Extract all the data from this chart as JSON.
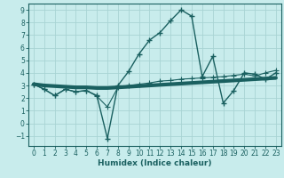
{
  "xlabel": "Humidex (Indice chaleur)",
  "bg_color": "#c8ecec",
  "grid_color": "#a8d4d4",
  "line_color": "#1a6060",
  "xlim": [
    -0.5,
    23.5
  ],
  "ylim": [
    -1.8,
    9.5
  ],
  "yticks": [
    -1,
    0,
    1,
    2,
    3,
    4,
    5,
    6,
    7,
    8,
    9
  ],
  "xticks": [
    0,
    1,
    2,
    3,
    4,
    5,
    6,
    7,
    8,
    9,
    10,
    11,
    12,
    13,
    14,
    15,
    16,
    17,
    18,
    19,
    20,
    21,
    22,
    23
  ],
  "line_thick_x": [
    0,
    1,
    2,
    3,
    4,
    5,
    6,
    7,
    8,
    9,
    10,
    11,
    12,
    13,
    14,
    15,
    16,
    17,
    18,
    19,
    20,
    21,
    22,
    23
  ],
  "line_thick_y": [
    3.1,
    3.0,
    2.95,
    2.9,
    2.85,
    2.85,
    2.8,
    2.8,
    2.85,
    2.9,
    2.95,
    3.0,
    3.05,
    3.1,
    3.15,
    3.2,
    3.25,
    3.3,
    3.35,
    3.4,
    3.45,
    3.5,
    3.55,
    3.6
  ],
  "line_main_x": [
    0,
    1,
    2,
    3,
    4,
    5,
    6,
    7,
    8,
    9,
    10,
    11,
    12,
    13,
    14,
    15,
    16,
    17,
    18,
    19,
    20,
    21,
    22,
    23
  ],
  "line_main_y": [
    3.1,
    2.7,
    2.2,
    2.7,
    2.5,
    2.6,
    2.2,
    -1.2,
    3.0,
    4.1,
    5.5,
    6.6,
    7.2,
    8.15,
    9.0,
    8.5,
    3.7,
    5.3,
    1.6,
    2.6,
    4.0,
    3.9,
    3.5,
    4.0
  ],
  "line_sec_x": [
    0,
    1,
    2,
    3,
    4,
    5,
    6,
    7,
    8,
    9,
    10,
    11,
    12,
    13,
    14,
    15,
    16,
    17,
    18,
    19,
    20,
    21,
    22,
    23
  ],
  "line_sec_y": [
    3.1,
    2.7,
    2.2,
    2.7,
    2.5,
    2.6,
    2.15,
    1.3,
    2.85,
    3.0,
    3.1,
    3.2,
    3.35,
    3.4,
    3.5,
    3.55,
    3.6,
    3.65,
    3.7,
    3.8,
    3.9,
    3.75,
    4.0,
    4.2
  ]
}
